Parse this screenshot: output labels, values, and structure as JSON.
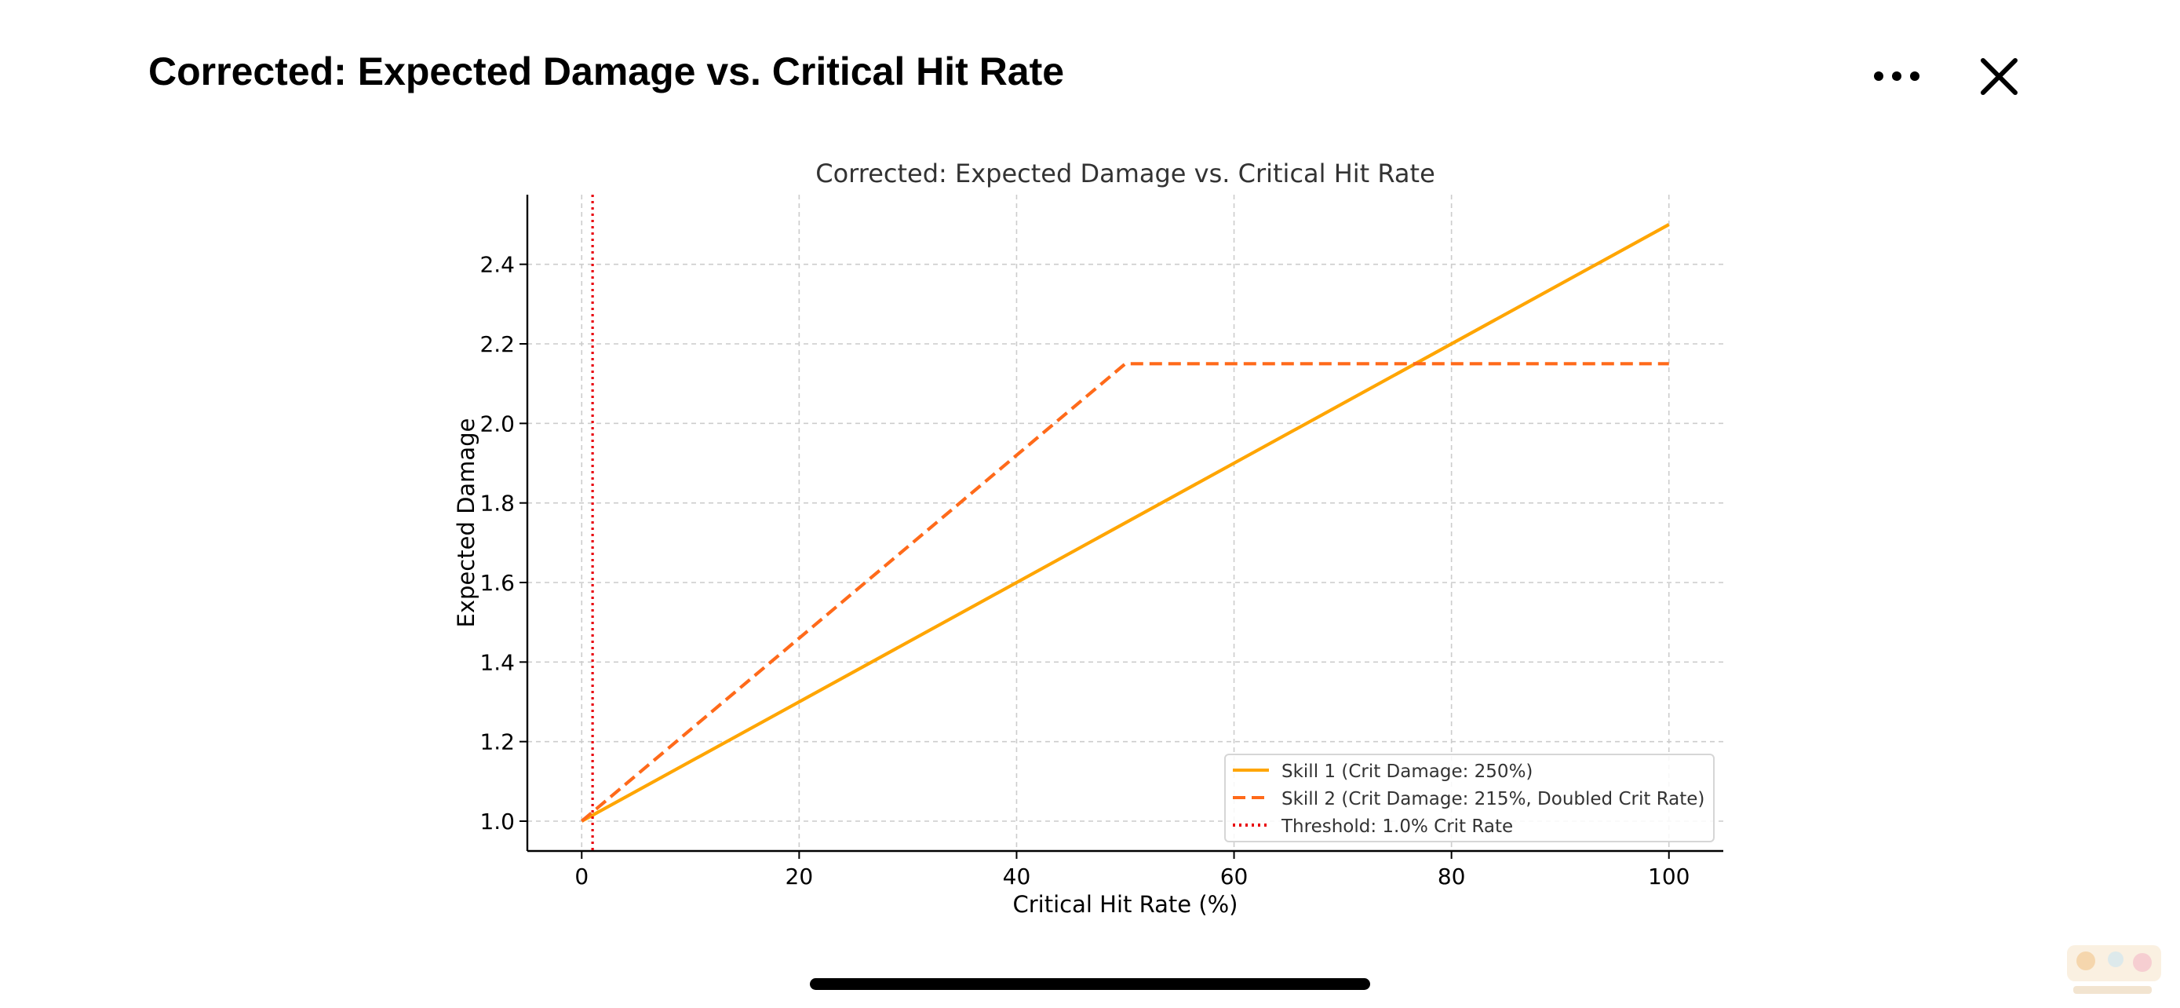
{
  "header": {
    "title": "Corrected: Expected Damage vs. Critical Hit Rate",
    "more_icon": "more-horizontal-icon",
    "close_icon": "close-icon"
  },
  "chart_data": {
    "type": "line",
    "title": "Corrected: Expected Damage vs. Critical Hit Rate",
    "xlabel": "Critical Hit Rate (%)",
    "ylabel": "Expected Damage",
    "xlim": [
      -5,
      105
    ],
    "ylim": [
      0.925,
      2.575
    ],
    "xticks": [
      0,
      20,
      40,
      60,
      80,
      100
    ],
    "xtick_labels": [
      "0",
      "20",
      "40",
      "60",
      "80",
      "100"
    ],
    "yticks": [
      1.0,
      1.2,
      1.4,
      1.6,
      1.8,
      2.0,
      2.2,
      2.4
    ],
    "ytick_labels": [
      "1.0",
      "1.2",
      "1.4",
      "1.6",
      "1.8",
      "2.0",
      "2.2",
      "2.4"
    ],
    "grid": true,
    "legend_position": "bottom-right",
    "series": [
      {
        "name": "Skill 1 (Crit Damage: 250%)",
        "color": "#FFA500",
        "style": "solid",
        "x": [
          0,
          100
        ],
        "y": [
          1.0,
          2.5
        ]
      },
      {
        "name": "Skill 2 (Crit Damage: 215%, Doubled Crit Rate)",
        "color": "#FF6A1A",
        "style": "dashed",
        "x": [
          0,
          50,
          100
        ],
        "y": [
          1.0,
          2.15,
          2.15
        ]
      }
    ],
    "vlines": [
      {
        "name": "Threshold: 1.0% Crit Rate",
        "color": "#E8000B",
        "style": "dotted",
        "x": 1.0
      }
    ]
  },
  "home_indicator": "home-indicator-bar",
  "watermark": "site-logo-watermark"
}
